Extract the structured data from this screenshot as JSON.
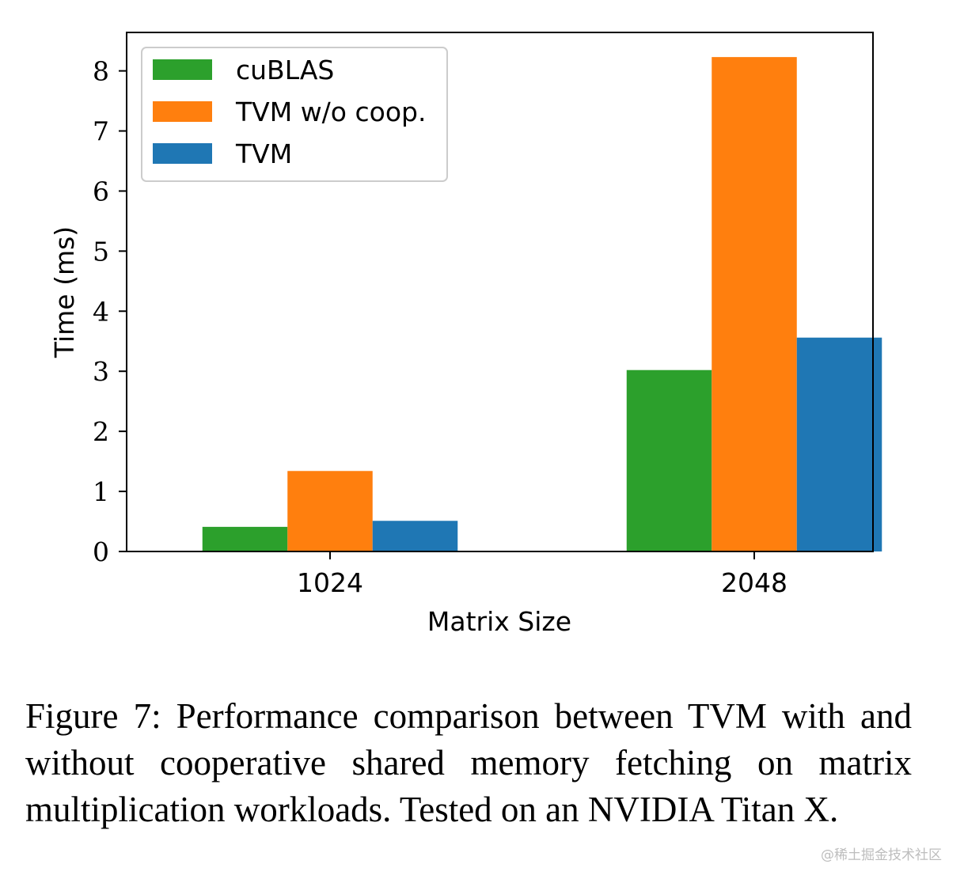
{
  "chart_data": {
    "type": "bar",
    "categories": [
      "1024",
      "2048"
    ],
    "series": [
      {
        "name": "cuBLAS",
        "values": [
          0.41,
          3.02
        ],
        "color": "#2ca02c"
      },
      {
        "name": "TVM w/o coop.",
        "values": [
          1.34,
          8.23
        ],
        "color": "#ff7f0e"
      },
      {
        "name": "TVM",
        "values": [
          0.51,
          3.56
        ],
        "color": "#1f77b4"
      }
    ],
    "title": "",
    "xlabel": "Matrix Size",
    "ylabel": "Time (ms)",
    "ylim": [
      0,
      8.64
    ],
    "yticks": [
      "0",
      "1",
      "2",
      "3",
      "4",
      "5",
      "6",
      "7",
      "8"
    ],
    "grid": false,
    "legend_position": "top-left"
  },
  "caption": "Figure 7: Performance comparison between TVM with and without cooperative shared memory fetching on matrix multiplication workloads. Tested on an NVIDIA Titan X.",
  "watermark": "@稀土掘金技术社区"
}
